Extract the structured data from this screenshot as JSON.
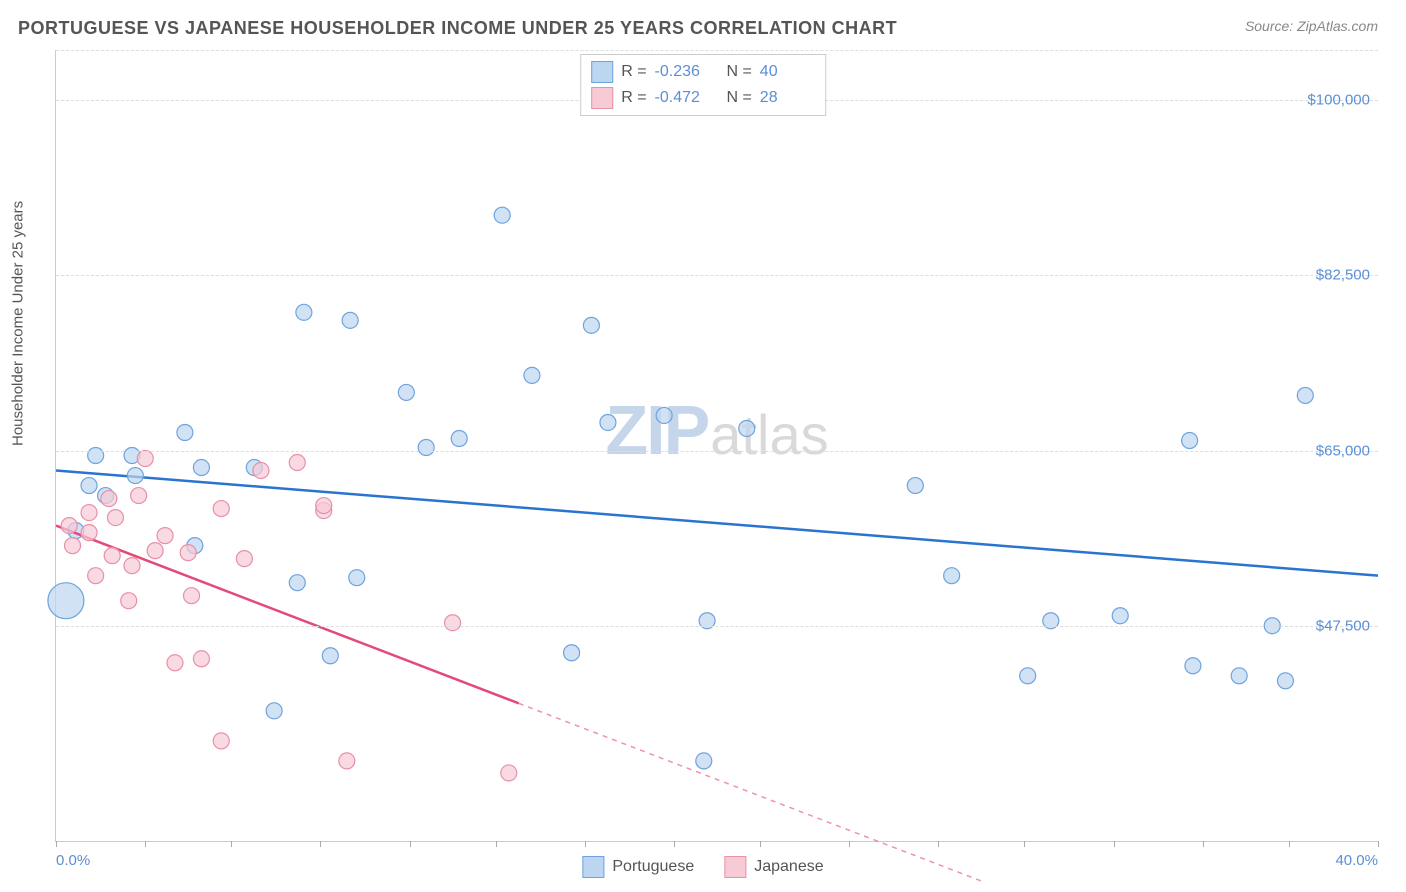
{
  "title": "PORTUGUESE VS JAPANESE HOUSEHOLDER INCOME UNDER 25 YEARS CORRELATION CHART",
  "source_label": "Source: ZipAtlas.com",
  "y_axis_title": "Householder Income Under 25 years",
  "watermark": {
    "bold": "ZIP",
    "light": "atlas"
  },
  "chart": {
    "type": "scatter",
    "xlim": [
      0,
      40
    ],
    "ylim": [
      26000,
      105000
    ],
    "x_start_label": "0.0%",
    "x_end_label": "40.0%",
    "y_ticks": [
      47500,
      65000,
      82500,
      100000
    ],
    "y_tick_labels": [
      "$47,500",
      "$65,000",
      "$82,500",
      "$100,000"
    ],
    "x_tick_positions": [
      0,
      2.7,
      5.3,
      8,
      10.7,
      13.3,
      16,
      18.7,
      21.3,
      24,
      26.7,
      29.3,
      32,
      34.7,
      37.3,
      40
    ],
    "background_color": "#ffffff",
    "grid_color": "#dddddd",
    "label_color": "#5a8fd6",
    "axis_title_color": "#555555",
    "label_fontsize": 15,
    "title_fontsize": 18
  },
  "series": [
    {
      "name": "Portuguese",
      "fill": "#bcd5f0",
      "stroke": "#6ea3de",
      "line_color": "#2a74d0",
      "R": "-0.236",
      "N": "40",
      "trend": {
        "x1": 0,
        "y1": 63000,
        "x2": 40,
        "y2": 52500,
        "solid_until_x": 40
      },
      "points": [
        {
          "x": 0.3,
          "y": 50000,
          "r": 18
        },
        {
          "x": 0.6,
          "y": 57000,
          "r": 8
        },
        {
          "x": 1.0,
          "y": 61500,
          "r": 8
        },
        {
          "x": 1.2,
          "y": 64500,
          "r": 8
        },
        {
          "x": 1.5,
          "y": 60500,
          "r": 8
        },
        {
          "x": 2.3,
          "y": 64500,
          "r": 8
        },
        {
          "x": 2.4,
          "y": 62500,
          "r": 8
        },
        {
          "x": 3.9,
          "y": 66800,
          "r": 8
        },
        {
          "x": 4.2,
          "y": 55500,
          "r": 8
        },
        {
          "x": 4.4,
          "y": 63300,
          "r": 8
        },
        {
          "x": 6.0,
          "y": 63300,
          "r": 8
        },
        {
          "x": 6.6,
          "y": 39000,
          "r": 8
        },
        {
          "x": 7.3,
          "y": 51800,
          "r": 8
        },
        {
          "x": 7.5,
          "y": 78800,
          "r": 8
        },
        {
          "x": 8.3,
          "y": 44500,
          "r": 8
        },
        {
          "x": 8.9,
          "y": 78000,
          "r": 8
        },
        {
          "x": 9.1,
          "y": 52300,
          "r": 8
        },
        {
          "x": 10.6,
          "y": 70800,
          "r": 8
        },
        {
          "x": 11.2,
          "y": 65300,
          "r": 8
        },
        {
          "x": 12.2,
          "y": 66200,
          "r": 8
        },
        {
          "x": 13.5,
          "y": 88500,
          "r": 8
        },
        {
          "x": 14.4,
          "y": 72500,
          "r": 8
        },
        {
          "x": 15.6,
          "y": 44800,
          "r": 8
        },
        {
          "x": 16.7,
          "y": 67800,
          "r": 8
        },
        {
          "x": 16.2,
          "y": 77500,
          "r": 8
        },
        {
          "x": 18.4,
          "y": 68500,
          "r": 8
        },
        {
          "x": 19.7,
          "y": 48000,
          "r": 8
        },
        {
          "x": 19.6,
          "y": 34000,
          "r": 8
        },
        {
          "x": 20.9,
          "y": 67200,
          "r": 8
        },
        {
          "x": 26.0,
          "y": 61500,
          "r": 8
        },
        {
          "x": 27.1,
          "y": 52500,
          "r": 8
        },
        {
          "x": 29.4,
          "y": 42500,
          "r": 8
        },
        {
          "x": 30.1,
          "y": 48000,
          "r": 8
        },
        {
          "x": 32.2,
          "y": 48500,
          "r": 8
        },
        {
          "x": 34.3,
          "y": 66000,
          "r": 8
        },
        {
          "x": 34.4,
          "y": 43500,
          "r": 8
        },
        {
          "x": 35.8,
          "y": 42500,
          "r": 8
        },
        {
          "x": 36.8,
          "y": 47500,
          "r": 8
        },
        {
          "x": 37.8,
          "y": 70500,
          "r": 8
        },
        {
          "x": 37.2,
          "y": 42000,
          "r": 8
        }
      ]
    },
    {
      "name": "Japanese",
      "fill": "#f7cbd6",
      "stroke": "#e890a8",
      "line_color": "#e44a79",
      "R": "-0.472",
      "N": "28",
      "trend": {
        "x1": 0,
        "y1": 57500,
        "x2": 28,
        "y2": 22000,
        "solid_until_x": 14
      },
      "points": [
        {
          "x": 0.4,
          "y": 57500,
          "r": 8
        },
        {
          "x": 0.5,
          "y": 55500,
          "r": 8
        },
        {
          "x": 1.0,
          "y": 56800,
          "r": 8
        },
        {
          "x": 1.2,
          "y": 52500,
          "r": 8
        },
        {
          "x": 1.0,
          "y": 58800,
          "r": 8
        },
        {
          "x": 1.7,
          "y": 54500,
          "r": 8
        },
        {
          "x": 1.6,
          "y": 60200,
          "r": 8
        },
        {
          "x": 1.8,
          "y": 58300,
          "r": 8
        },
        {
          "x": 2.5,
          "y": 60500,
          "r": 8
        },
        {
          "x": 2.3,
          "y": 53500,
          "r": 8
        },
        {
          "x": 2.2,
          "y": 50000,
          "r": 8
        },
        {
          "x": 2.7,
          "y": 64200,
          "r": 8
        },
        {
          "x": 3.0,
          "y": 55000,
          "r": 8
        },
        {
          "x": 3.3,
          "y": 56500,
          "r": 8
        },
        {
          "x": 3.6,
          "y": 43800,
          "r": 8
        },
        {
          "x": 4.1,
          "y": 50500,
          "r": 8
        },
        {
          "x": 4.0,
          "y": 54800,
          "r": 8
        },
        {
          "x": 4.4,
          "y": 44200,
          "r": 8
        },
        {
          "x": 5.0,
          "y": 59200,
          "r": 8
        },
        {
          "x": 5.0,
          "y": 36000,
          "r": 8
        },
        {
          "x": 5.7,
          "y": 54200,
          "r": 8
        },
        {
          "x": 6.2,
          "y": 63000,
          "r": 8
        },
        {
          "x": 7.3,
          "y": 63800,
          "r": 8
        },
        {
          "x": 8.1,
          "y": 59000,
          "r": 8
        },
        {
          "x": 8.1,
          "y": 59500,
          "r": 8
        },
        {
          "x": 8.8,
          "y": 34000,
          "r": 8
        },
        {
          "x": 12.0,
          "y": 47800,
          "r": 8
        },
        {
          "x": 13.7,
          "y": 32800,
          "r": 8
        }
      ]
    }
  ],
  "legend_bottom": [
    {
      "label": "Portuguese",
      "fill": "#bcd5f0",
      "stroke": "#6ea3de"
    },
    {
      "label": "Japanese",
      "fill": "#f7cbd6",
      "stroke": "#e890a8"
    }
  ]
}
